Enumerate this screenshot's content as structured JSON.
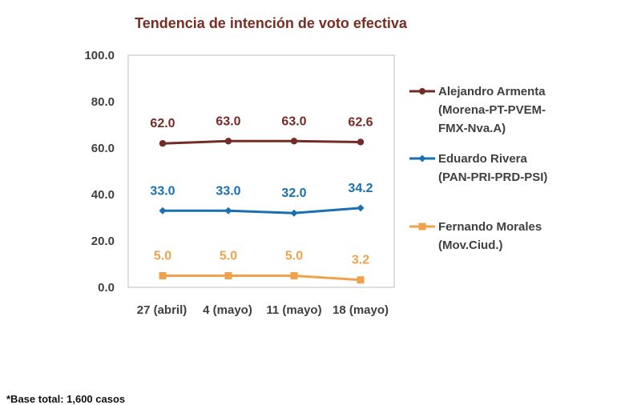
{
  "footnote": "*Base total: 1,600 casos",
  "colors": {
    "title": "#7b2c22",
    "axis_text": "#404040",
    "plot_border": "#bfbfbf"
  },
  "chart_data": {
    "type": "line",
    "title": "Tendencia de intención de voto efectiva",
    "categories": [
      "27 (abril)",
      "4 (mayo)",
      "11 (mayo)",
      "18 (mayo)"
    ],
    "ylim": [
      0,
      100
    ],
    "yticks": [
      "0.0",
      "20.0",
      "40.0",
      "60.0",
      "80.0",
      "100.0"
    ],
    "grid": false,
    "legend_position": "right",
    "series": [
      {
        "name_lines": [
          "Alejandro Armenta",
          "(Morena-PT-PVEM-",
          "FMX-Nva.A)"
        ],
        "values": [
          62.0,
          63.0,
          63.0,
          62.6
        ],
        "labels": [
          "62.0",
          "63.0",
          "63.0",
          "62.6"
        ],
        "color": "#722b25",
        "marker": "circle"
      },
      {
        "name_lines": [
          "Eduardo Rivera",
          "(PAN-PRI-PRD-PSI)"
        ],
        "values": [
          33.0,
          33.0,
          32.0,
          34.2
        ],
        "labels": [
          "33.0",
          "33.0",
          "32.0",
          "34.2"
        ],
        "color": "#1a6fb0",
        "marker": "diamond"
      },
      {
        "name_lines": [
          "Fernando Morales",
          "(Mov.Ciud.)"
        ],
        "values": [
          5.0,
          5.0,
          5.0,
          3.2
        ],
        "labels": [
          "5.0",
          "5.0",
          "5.0",
          "3.2"
        ],
        "color": "#f0a24a",
        "marker": "square"
      }
    ]
  }
}
